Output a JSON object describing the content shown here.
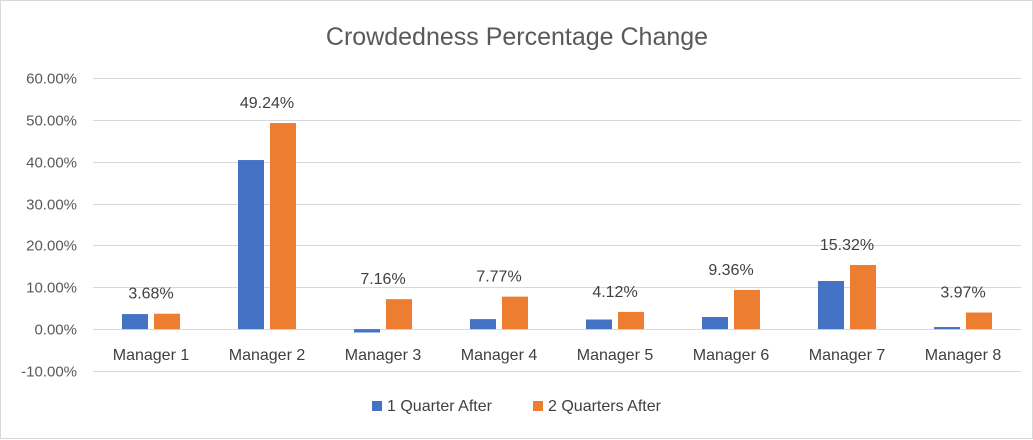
{
  "chart_data": {
    "type": "bar",
    "title": "Crowdedness Percentage Change",
    "xlabel": "",
    "ylabel": "",
    "ylim": [
      -0.1,
      0.6
    ],
    "y_ticks": [
      -0.1,
      0.0,
      0.1,
      0.2,
      0.3,
      0.4,
      0.5,
      0.6
    ],
    "y_tick_labels": [
      "-10.00%",
      "0.00%",
      "10.00%",
      "20.00%",
      "30.00%",
      "40.00%",
      "50.00%",
      "60.00%"
    ],
    "grid": true,
    "legend_position": "bottom",
    "categories": [
      "Manager 1",
      "Manager 2",
      "Manager 3",
      "Manager 4",
      "Manager 5",
      "Manager 6",
      "Manager 7",
      "Manager 8"
    ],
    "series": [
      {
        "name": "1 Quarter After",
        "color": "#4472c4",
        "values": [
          0.036,
          0.404,
          -0.008,
          0.024,
          0.023,
          0.029,
          0.115,
          0.005
        ],
        "data_labels": [
          "",
          "",
          "",
          "",
          "",
          "",
          "",
          ""
        ]
      },
      {
        "name": "2 Quarters After",
        "color": "#ed7d31",
        "values": [
          0.0368,
          0.4924,
          0.0716,
          0.0777,
          0.0412,
          0.0936,
          0.1532,
          0.0397
        ],
        "data_labels": [
          "3.68%",
          "49.24%",
          "7.16%",
          "7.77%",
          "4.12%",
          "9.36%",
          "15.32%",
          "3.97%"
        ]
      }
    ]
  }
}
